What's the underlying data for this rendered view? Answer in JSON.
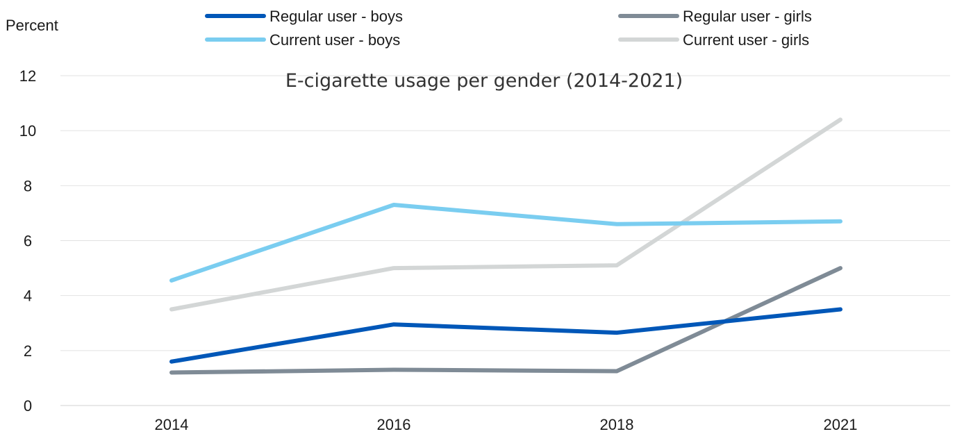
{
  "chart_data": {
    "type": "line",
    "title": "E-cigarette usage  per gender (2014-2021)",
    "ylabel": "Percent",
    "xlabel": "",
    "categories": [
      "2014",
      "2016",
      "2018",
      "2021"
    ],
    "ylim": [
      0,
      12
    ],
    "yticks": [
      "0",
      "2",
      "4",
      "6",
      "8",
      "10",
      "12"
    ],
    "grid": true,
    "legend_position": "top",
    "series": [
      {
        "name": "Regular user - boys",
        "color": "#0057B8",
        "values": [
          1.6,
          2.95,
          2.65,
          3.5
        ]
      },
      {
        "name": "Regular user - girls",
        "color": "#7F8B96",
        "values": [
          1.2,
          1.3,
          1.25,
          5.0
        ]
      },
      {
        "name": "Current user - boys",
        "color": "#7ACDF0",
        "values": [
          4.55,
          7.3,
          6.6,
          6.7
        ]
      },
      {
        "name": "Current user - girls",
        "color": "#D3D6D6",
        "values": [
          3.5,
          5.0,
          5.1,
          10.4
        ]
      }
    ]
  }
}
